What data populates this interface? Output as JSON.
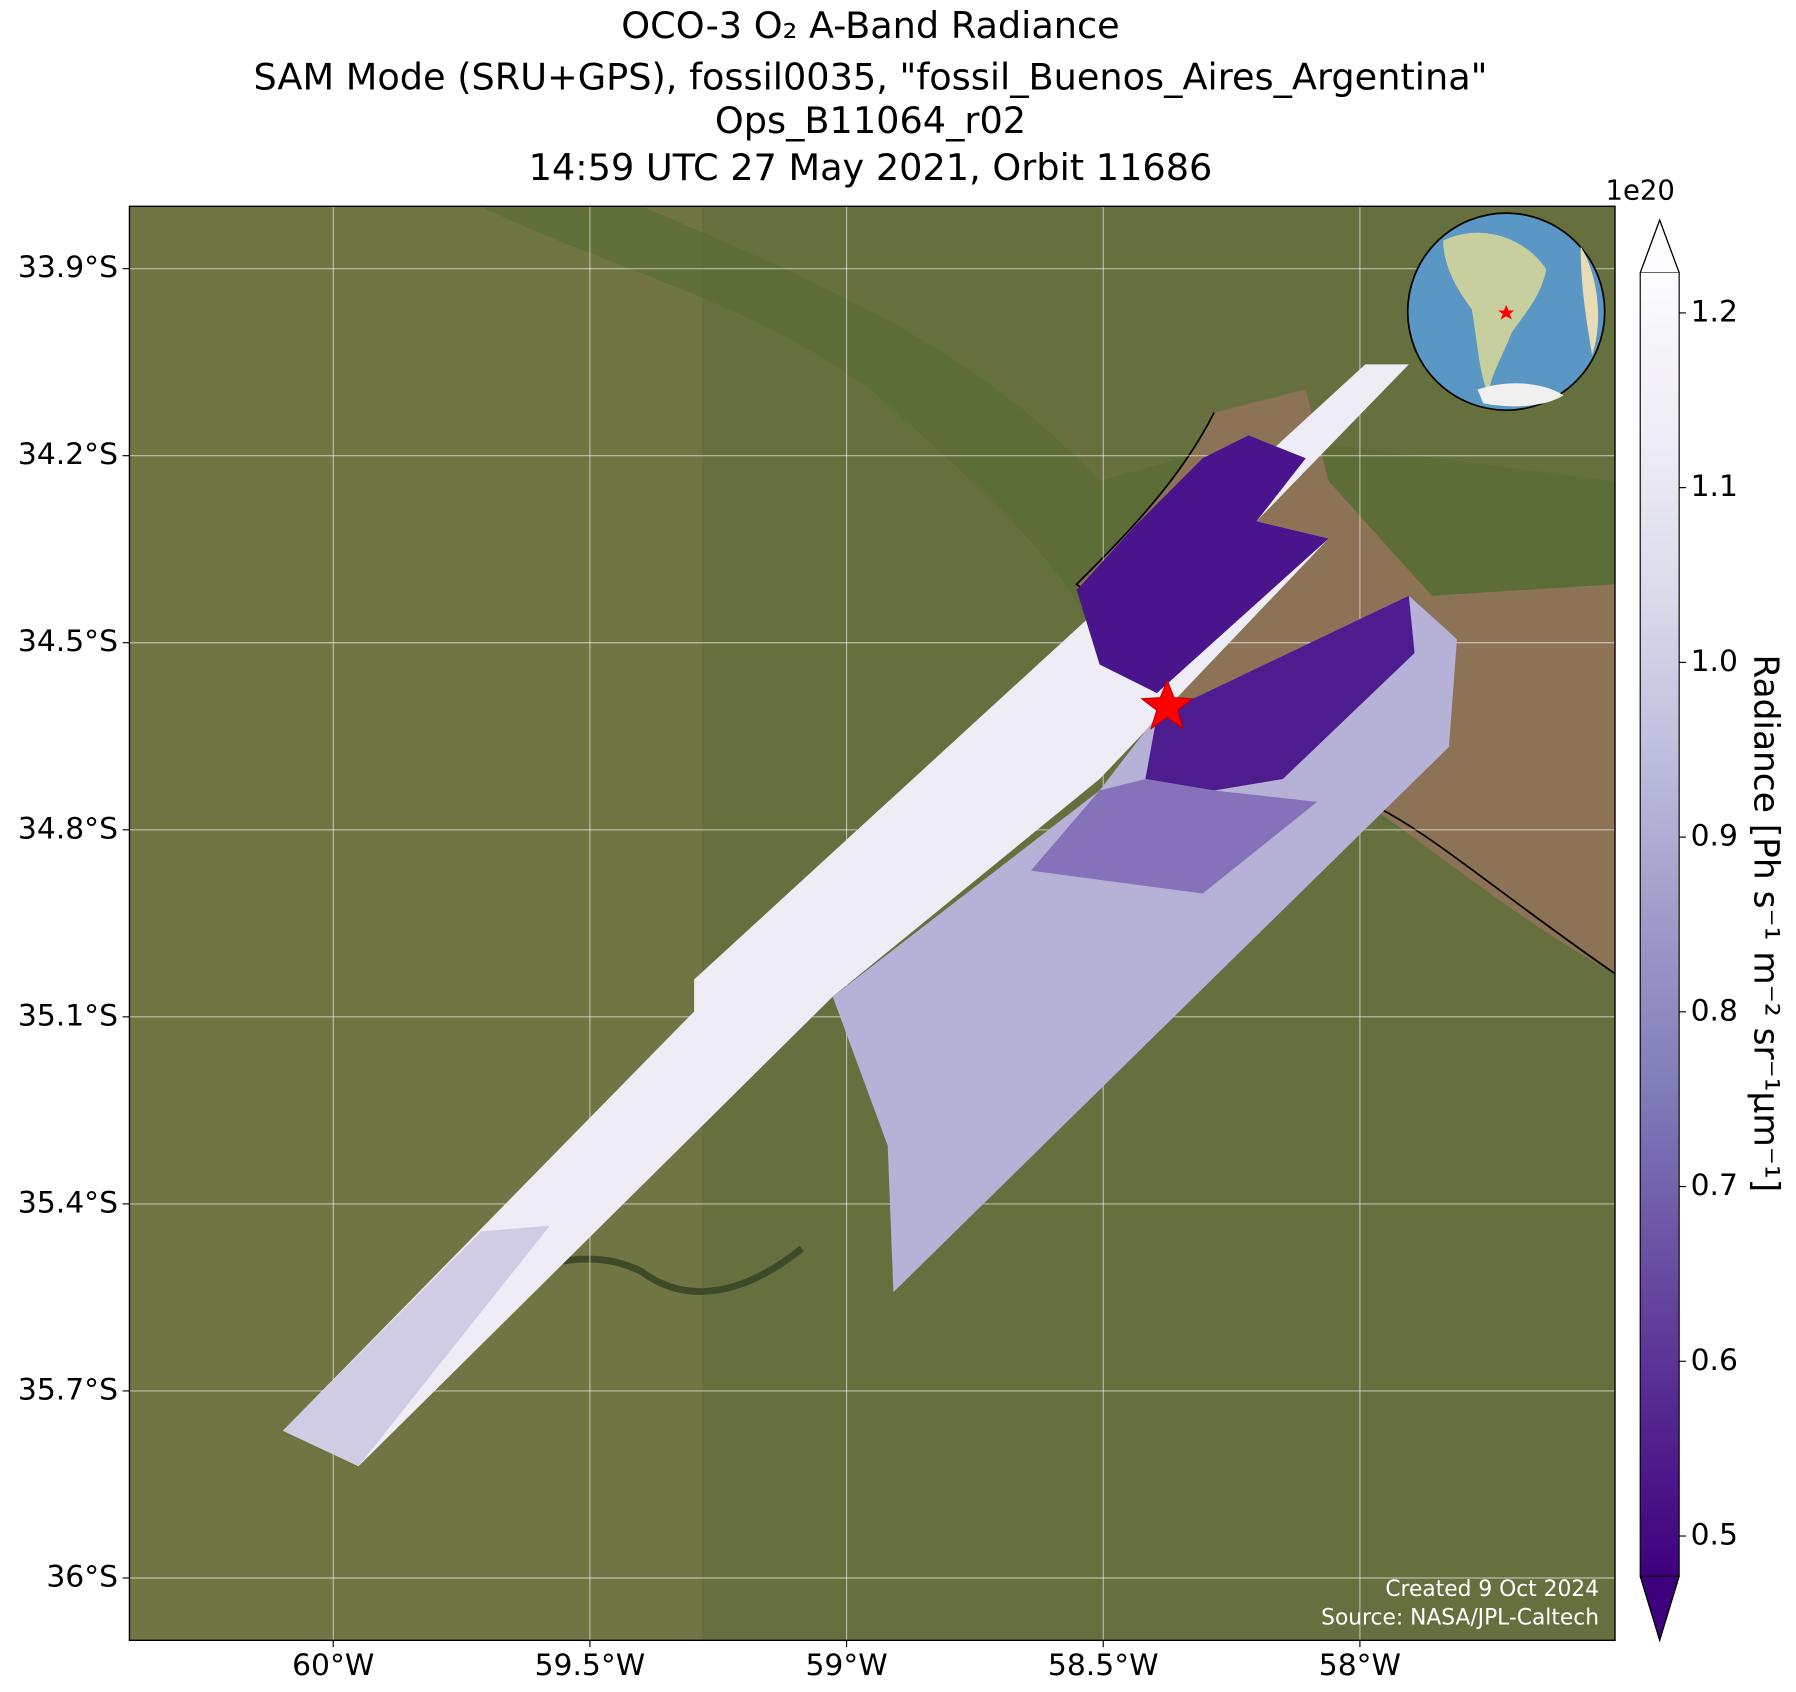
{
  "title": [
    "OCO-3 O₂ A-Band Radiance",
    "SAM Mode (SRU+GPS), fossil0035, \"fossil_Buenos_Aires_Argentina\"",
    "Ops_B11064_r02",
    "14:59 UTC 27 May 2021, Orbit 11686"
  ],
  "map": {
    "lonlim": [
      -60.397,
      -57.503
    ],
    "latlim": [
      -36.1,
      -33.8
    ],
    "xticks": [
      {
        "value": -60,
        "label": "60°W"
      },
      {
        "value": -59.5,
        "label": "59.5°W"
      },
      {
        "value": -59,
        "label": "59°W"
      },
      {
        "value": -58.5,
        "label": "58.5°W"
      },
      {
        "value": -58,
        "label": "58°W"
      }
    ],
    "yticks": [
      {
        "value": -33.9,
        "label": "33.9°S"
      },
      {
        "value": -34.2,
        "label": "34.2°S"
      },
      {
        "value": -34.5,
        "label": "34.5°S"
      },
      {
        "value": -34.8,
        "label": "34.8°S"
      },
      {
        "value": -35.1,
        "label": "35.1°S"
      },
      {
        "value": -35.4,
        "label": "35.4°S"
      },
      {
        "value": -35.7,
        "label": "35.7°S"
      },
      {
        "value": -36,
        "label": "36°S"
      }
    ],
    "grid": true
  },
  "colorbar": {
    "label": "Radiance [Ph s⁻¹ m⁻² sr⁻¹μm⁻¹]",
    "offset": "1e20",
    "clim": [
      0.477,
      1.223
    ],
    "ticks": [
      0.5,
      0.6,
      0.7,
      0.8,
      0.9,
      {
        "value": 1,
        "label": "1.0"
      },
      1.1,
      1.2
    ],
    "colors": [
      "#3f007d",
      "#54278f",
      "#6a51a3",
      "#807dba",
      "#9e9ac8",
      "#bcbddc",
      "#dadaeb",
      "#efedf5",
      "#fcfbfd"
    ]
  },
  "credits": [
    "Created 9 Oct 2024",
    "Source: NASA/JPL-Caltech"
  ]
}
